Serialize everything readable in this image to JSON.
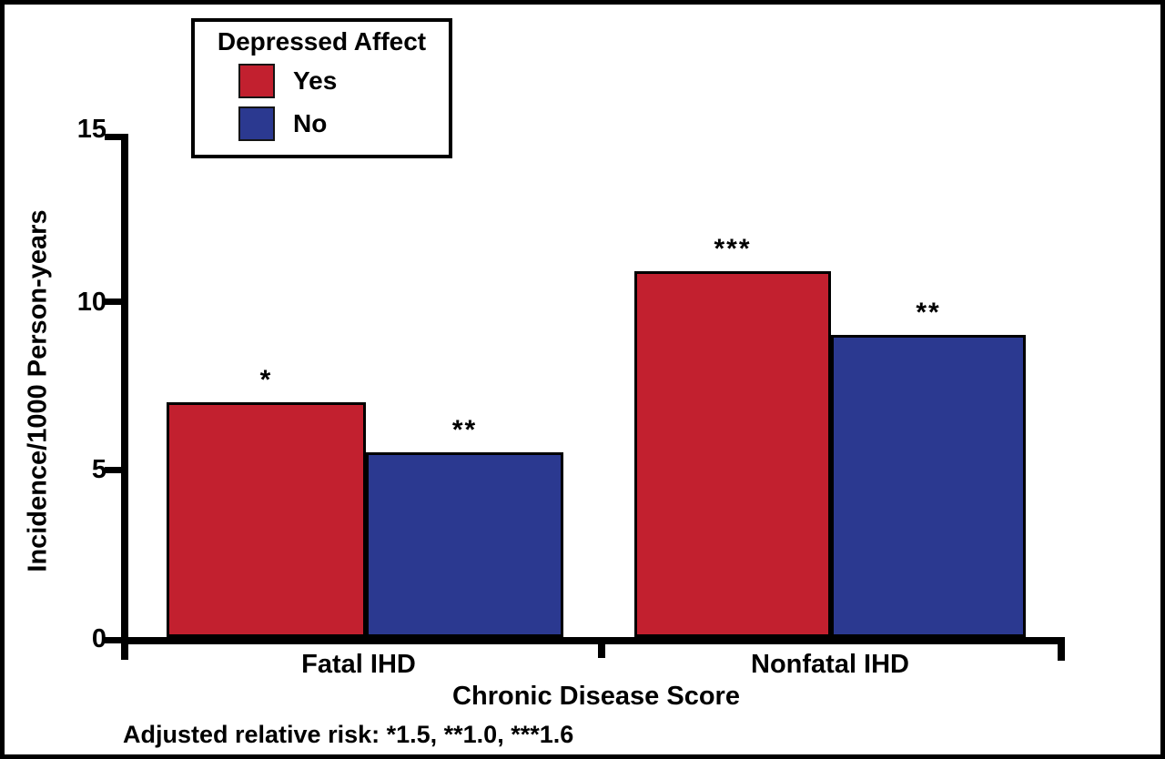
{
  "chart_data": {
    "type": "bar",
    "categories": [
      "Fatal IHD",
      "Nonfatal IHD"
    ],
    "series": [
      {
        "name": "Yes",
        "color": "#C2202F",
        "values": [
          7.0,
          10.9
        ],
        "annotations": [
          "*",
          "***"
        ]
      },
      {
        "name": "No",
        "color": "#2B3990",
        "values": [
          5.5,
          9.0
        ],
        "annotations": [
          "**",
          "**"
        ]
      }
    ],
    "legend_title": "Depressed Affect",
    "legend_position": "top-left",
    "ylabel": "Incidence/1000 Person-years",
    "xlabel": "Chronic Disease Score",
    "yticks": [
      "0",
      "5",
      "10",
      "15"
    ],
    "ylim": [
      0,
      15
    ],
    "grid": false,
    "footnote": "Adjusted relative risk: *1.5, **1.0, ***1.6"
  }
}
